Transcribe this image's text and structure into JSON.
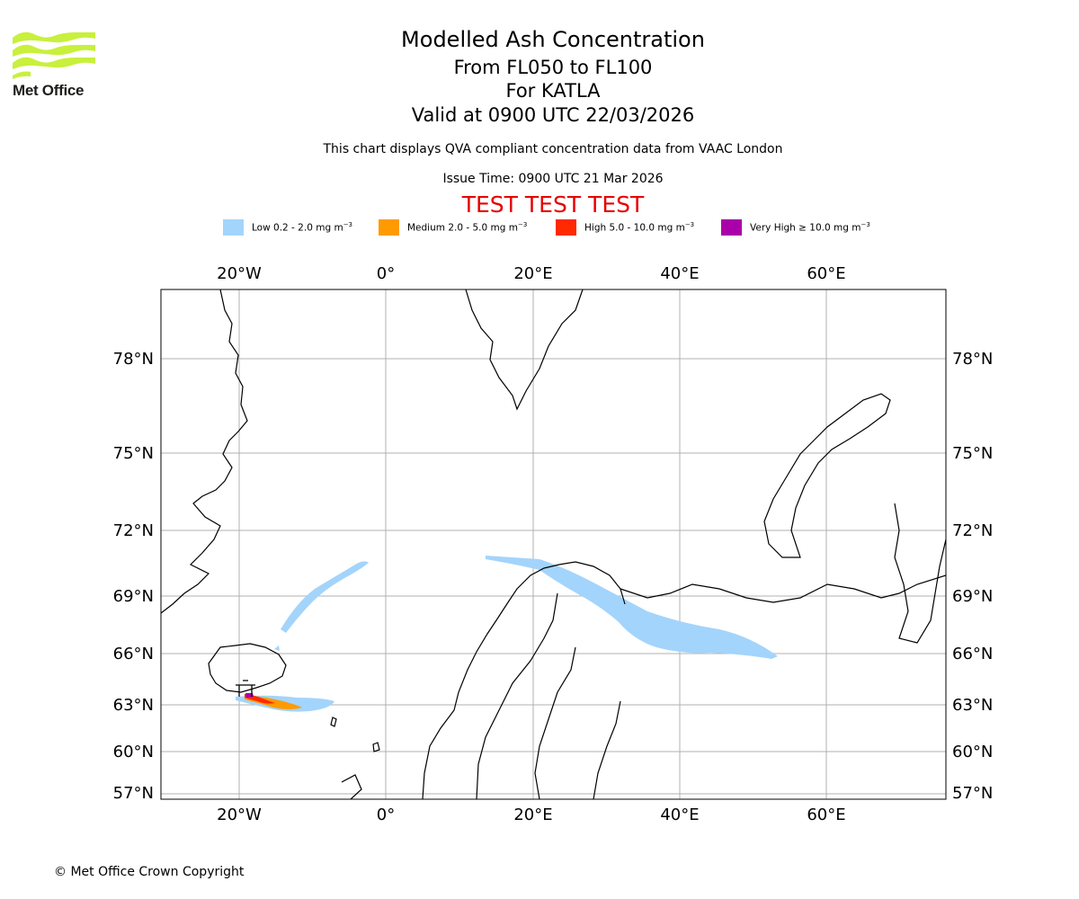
{
  "brand": {
    "name": "Met Office",
    "logo_color": "#c8f03c"
  },
  "header": {
    "title": "Modelled Ash Concentration",
    "level_range": "From FL050 to FL100",
    "volcano": "For KATLA",
    "valid_time": "Valid at 0900 UTC 22/03/2026",
    "compliance_note": "This chart displays QVA compliant concentration data from VAAC London",
    "issue_time": "Issue Time: 0900 UTC 21 Mar 2026",
    "test_banner": "TEST TEST TEST"
  },
  "legend": [
    {
      "label": "Low 0.2 - 2.0 mg m",
      "unit_exp": "−3",
      "color": "#a3d4fc"
    },
    {
      "label": "Medium 2.0 - 5.0 mg m",
      "unit_exp": "−3",
      "color": "#ff9a00"
    },
    {
      "label": "High 5.0 - 10.0 mg m",
      "unit_exp": "−3",
      "color": "#ff2a00"
    },
    {
      "label": "Very High ≥ 10.0 mg m",
      "unit_exp": "−3",
      "color": "#aa00aa"
    }
  ],
  "map": {
    "lon_ticks": [
      "20°W",
      "0°",
      "20°E",
      "40°E",
      "60°E"
    ],
    "lat_ticks": [
      "78°N",
      "75°N",
      "72°N",
      "69°N",
      "66°N",
      "63°N",
      "60°N",
      "57°N"
    ],
    "source_marker": "KATLA"
  },
  "footer": {
    "copyright": "© Met Office Crown Copyright"
  }
}
